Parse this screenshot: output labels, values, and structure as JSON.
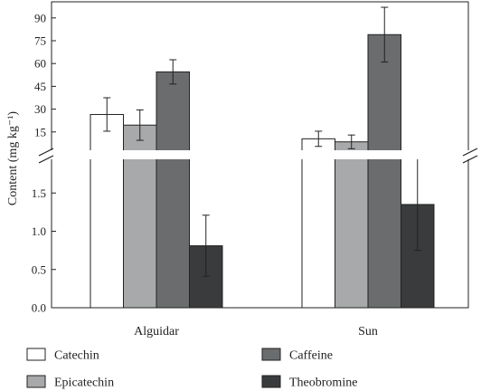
{
  "chart_data": {
    "type": "bar",
    "categories": [
      "Alguidar",
      "Sun"
    ],
    "ylabel": "Content (mg kg⁻¹)",
    "axis_break": true,
    "upper_panel": {
      "ylim": [
        0,
        100
      ],
      "ticks": [
        "15",
        "30",
        "45",
        "60",
        "75",
        "90"
      ]
    },
    "lower_panel": {
      "ylim": [
        0,
        2.0
      ],
      "ticks": [
        "0.0",
        "0.5",
        "1.0",
        "1.5"
      ]
    },
    "series": [
      {
        "name": "Catechin",
        "color": "#ffffff",
        "values": [
          26.5,
          10.5
        ],
        "errors": [
          11,
          5
        ]
      },
      {
        "name": "Epicatechin",
        "color": "#a8a9ab",
        "values": [
          19.5,
          8.5
        ],
        "errors": [
          10,
          4.5
        ]
      },
      {
        "name": "Caffeine",
        "color": "#6b6c6e",
        "values": [
          54.5,
          79
        ],
        "errors": [
          8,
          18
        ]
      },
      {
        "name": "Theobromine",
        "color": "#3a3b3d",
        "values": [
          0.81,
          1.35
        ],
        "errors": [
          0.4,
          0.6
        ]
      }
    ],
    "legend_position": "bottom",
    "grid": false
  }
}
